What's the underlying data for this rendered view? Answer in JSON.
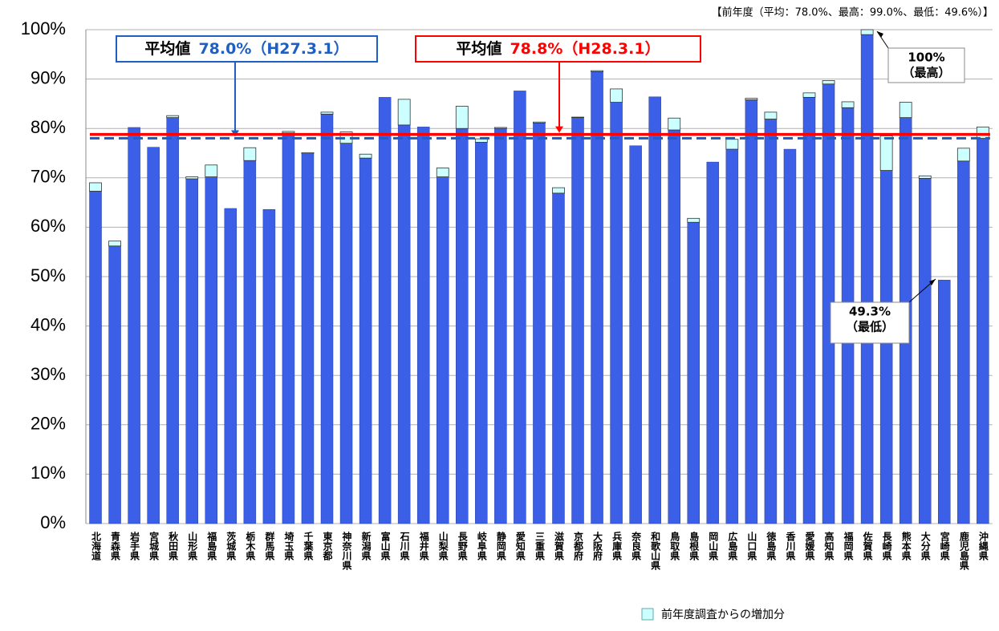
{
  "chart_data": {
    "type": "stacked_bar",
    "note": "【前年度（平均：78.0%、最高：99.0%、最低：49.6%）】",
    "categories": [
      "北海道",
      "青森県",
      "岩手県",
      "宮城県",
      "秋田県",
      "山形県",
      "福島県",
      "茨城県",
      "栃木県",
      "群馬県",
      "埼玉県",
      "千葉県",
      "東京都",
      "神奈川県",
      "新潟県",
      "富山県",
      "石川県",
      "福井県",
      "山梨県",
      "長野県",
      "岐阜県",
      "静岡県",
      "愛知県",
      "三重県",
      "滋賀県",
      "京都府",
      "大阪府",
      "兵庫県",
      "奈良県",
      "和歌山県",
      "鳥取県",
      "島根県",
      "岡山県",
      "広島県",
      "山口県",
      "徳島県",
      "香川県",
      "愛媛県",
      "高知県",
      "福岡県",
      "佐賀県",
      "長崎県",
      "熊本県",
      "大分県",
      "宮崎県",
      "鹿児島県",
      "沖縄県"
    ],
    "series": [
      {
        "color": "#3b5fe6",
        "values": [
          67.3,
          56.2,
          80.2,
          76.2,
          82.2,
          69.8,
          70.2,
          63.8,
          73.5,
          63.6,
          79.1,
          74.9,
          82.9,
          77.0,
          74.0,
          86.3,
          80.7,
          80.3,
          70.2,
          80.0,
          77.2,
          80.0,
          87.6,
          81.1,
          66.9,
          82.2,
          91.5,
          85.3,
          76.5,
          86.4,
          79.7,
          61.0,
          73.2,
          75.8,
          85.8,
          81.9,
          75.8,
          86.3,
          89.0,
          84.2,
          99.0,
          71.5,
          82.2,
          69.9,
          49.3,
          73.4,
          78.0
        ]
      },
      {
        "name": "前年度調査からの増加分",
        "color": "#ccffff",
        "values": [
          1.7,
          1.0,
          0,
          0,
          0.4,
          0.4,
          2.4,
          0,
          2.6,
          0,
          0.3,
          0.2,
          0.4,
          2.3,
          0.8,
          0,
          5.2,
          0,
          1.8,
          4.5,
          0.7,
          0.2,
          0,
          0.2,
          1.1,
          0.1,
          0.2,
          2.7,
          0,
          0,
          2.4,
          0.8,
          0,
          2.0,
          0.3,
          1.4,
          0,
          0.9,
          0.7,
          1.2,
          1.0,
          7.0,
          3.1,
          0.5,
          0,
          2.6,
          2.3
        ]
      }
    ],
    "ylim": [
      0,
      100
    ],
    "yticks": [
      {
        "value": 0,
        "label": "0%"
      },
      {
        "value": 10,
        "label": "10%"
      },
      {
        "value": 20,
        "label": "20%"
      },
      {
        "value": 30,
        "label": "30%"
      },
      {
        "value": 40,
        "label": "40%"
      },
      {
        "value": 50,
        "label": "50%"
      },
      {
        "value": 60,
        "label": "60%"
      },
      {
        "value": 70,
        "label": "70%"
      },
      {
        "value": 80,
        "label": "80%"
      },
      {
        "value": 90,
        "label": "90%"
      },
      {
        "value": 100,
        "label": "100%"
      }
    ],
    "grid": true,
    "reference_lines": [
      {
        "label": "平均値",
        "text": "78.0%（H27.3.1）",
        "value": 78.0,
        "color": "#1f5fc4",
        "style": "dashed"
      },
      {
        "label": "平均値",
        "text": "78.8%（H28.3.1）",
        "value": 78.8,
        "color": "#ff0000",
        "style": "solid"
      }
    ],
    "callouts": [
      {
        "lines": [
          "100%",
          "（最高）"
        ]
      },
      {
        "lines": [
          "49.3%",
          "（最低）"
        ]
      }
    ]
  }
}
